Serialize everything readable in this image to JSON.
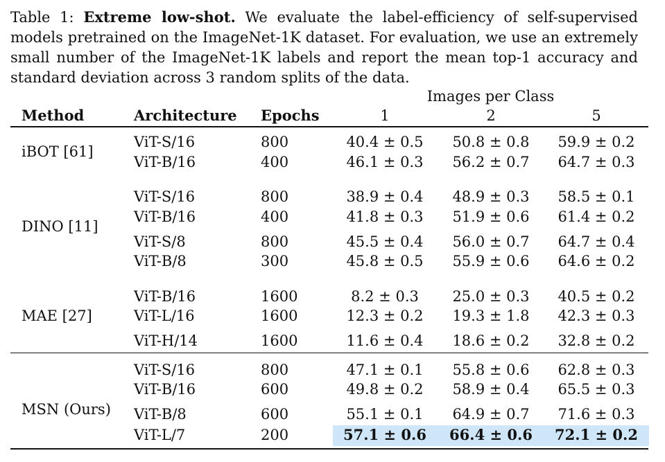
{
  "caption": {
    "label": "Table 1:",
    "title": "Extreme low-shot.",
    "text": "We evaluate the label-efficiency of self-supervised models pretrained on the ImageNet-1K dataset. For evaluation, we use an extremely small number of the ImageNet-1K labels and report the mean top-1 accuracy and standard deviation across 3 random splits of the data."
  },
  "header": {
    "group": "Images per Class",
    "method": "Method",
    "architecture": "Architecture",
    "epochs": "Epochs",
    "c1": "1",
    "c2": "2",
    "c5": "5"
  },
  "groups": [
    {
      "method": "iBOT [61]",
      "rows": [
        {
          "arch": "ViT-S/16",
          "epochs": "800",
          "v1": "40.4 ± 0.5",
          "v2": "50.8 ± 0.8",
          "v5": "59.9 ± 0.2"
        },
        {
          "arch": "ViT-B/16",
          "epochs": "400",
          "v1": "46.1 ± 0.3",
          "v2": "56.2 ± 0.7",
          "v5": "64.7 ± 0.3"
        }
      ]
    },
    {
      "method": "DINO [11]",
      "rows": [
        {
          "arch": "ViT-S/16",
          "epochs": "800",
          "v1": "38.9 ± 0.4",
          "v2": "48.9 ± 0.3",
          "v5": "58.5 ± 0.1"
        },
        {
          "arch": "ViT-B/16",
          "epochs": "400",
          "v1": "41.8 ± 0.3",
          "v2": "51.9 ± 0.6",
          "v5": "61.4 ± 0.2"
        },
        {
          "arch": "ViT-S/8",
          "epochs": "800",
          "v1": "45.5 ± 0.4",
          "v2": "56.0 ± 0.7",
          "v5": "64.7 ± 0.4"
        },
        {
          "arch": "ViT-B/8",
          "epochs": "300",
          "v1": "45.8 ± 0.5",
          "v2": "55.9 ± 0.6",
          "v5": "64.6 ± 0.2"
        }
      ]
    },
    {
      "method": "MAE [27]",
      "rows": [
        {
          "arch": "ViT-B/16",
          "epochs": "1600",
          "v1": "8.2 ± 0.3",
          "v2": "25.0 ± 0.3",
          "v5": "40.5 ± 0.2"
        },
        {
          "arch": "ViT-L/16",
          "epochs": "1600",
          "v1": "12.3 ± 0.2",
          "v2": "19.3 ± 1.8",
          "v5": "42.3 ± 0.3"
        },
        {
          "arch": "ViT-H/14",
          "epochs": "1600",
          "v1": "11.6 ± 0.4",
          "v2": "18.6 ± 0.2",
          "v5": "32.8 ± 0.2"
        }
      ]
    },
    {
      "method": "MSN (Ours)",
      "rows": [
        {
          "arch": "ViT-S/16",
          "epochs": "800",
          "v1": "47.1 ± 0.1",
          "v2": "55.8 ± 0.6",
          "v5": "62.8 ± 0.3"
        },
        {
          "arch": "ViT-B/16",
          "epochs": "600",
          "v1": "49.8 ± 0.2",
          "v2": "58.9 ± 0.4",
          "v5": "65.5 ± 0.3"
        },
        {
          "arch": "ViT-B/8",
          "epochs": "600",
          "v1": "55.1 ± 0.1",
          "v2": "64.9 ± 0.7",
          "v5": "71.6 ± 0.3"
        },
        {
          "arch": "ViT-L/7",
          "epochs": "200",
          "v1": "57.1 ± 0.6",
          "v2": "66.4 ± 0.6",
          "v5": "72.1 ± 0.2"
        }
      ]
    }
  ],
  "highlight_color": "#cfe6f8"
}
